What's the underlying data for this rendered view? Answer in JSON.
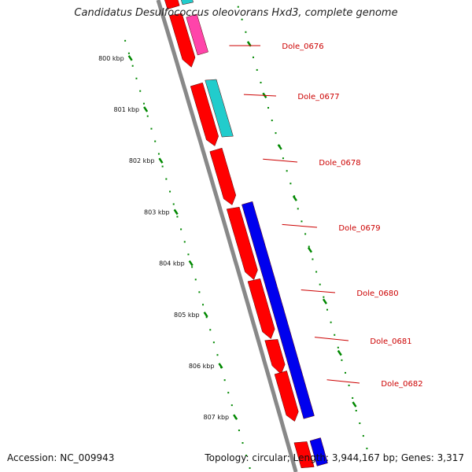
{
  "title": "Candidatus Desulfococcus oleovorans Hxd3, complete genome",
  "footer": {
    "accession": "Accession: NC_009943",
    "summary": "Topology: circular; Length: 3,944,167 bp; Genes: 3,317"
  },
  "colors": {
    "backbone": "#888888",
    "cds": "#ff0000",
    "pink": "#ff44aa",
    "cyan": "#22cccc",
    "blue": "#0000ee",
    "ticks": "#008800",
    "label": "#cc0000"
  },
  "ruler": [
    {
      "kbp": 800,
      "label": "800 kbp"
    },
    {
      "kbp": 801,
      "label": "801 kbp"
    },
    {
      "kbp": 802,
      "label": "802 kbp"
    },
    {
      "kbp": 803,
      "label": "803 kbp"
    },
    {
      "kbp": 804,
      "label": "804 kbp"
    },
    {
      "kbp": 805,
      "label": "805 kbp"
    },
    {
      "kbp": 806,
      "label": "806 kbp"
    },
    {
      "kbp": 807,
      "label": "807 kbp"
    }
  ],
  "genes": [
    {
      "id": "Dole_0676",
      "feature": "pink"
    },
    {
      "id": "Dole_0677",
      "feature": "cyan"
    },
    {
      "id": "Dole_0678",
      "feature": "none"
    },
    {
      "id": "Dole_0679",
      "feature": "blue"
    },
    {
      "id": "Dole_0680",
      "feature": "blue"
    },
    {
      "id": "Dole_0681",
      "feature": "blue"
    },
    {
      "id": "Dole_0682",
      "feature": "blue"
    }
  ]
}
